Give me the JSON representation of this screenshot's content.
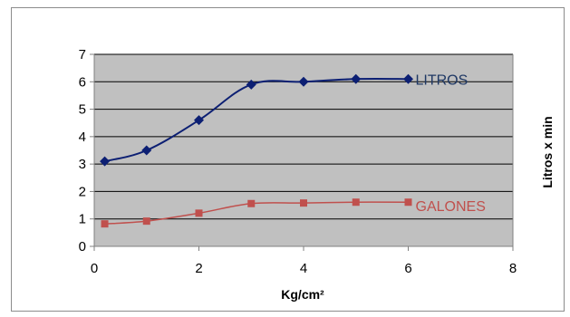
{
  "chart_data": {
    "type": "line",
    "xlabel": "Kg/cm²",
    "ylabel": "Litros x min",
    "xlim": [
      0,
      8
    ],
    "ylim": [
      0,
      7
    ],
    "x_ticks": [
      "0",
      "2",
      "4",
      "6",
      "8"
    ],
    "y_ticks": [
      "0",
      "1",
      "2",
      "3",
      "4",
      "5",
      "6",
      "7"
    ],
    "grid": "horizontal",
    "plot_background": "#c0c0c0",
    "series": [
      {
        "name": "LITROS",
        "color": "#0c1f73",
        "label_color": "#1f3864",
        "marker": "diamond",
        "smooth": true,
        "x": [
          0.2,
          1,
          2,
          3,
          4,
          5,
          6
        ],
        "values": [
          3.1,
          3.5,
          4.6,
          5.9,
          6.0,
          6.1,
          6.1
        ]
      },
      {
        "name": "GALONES",
        "color": "#c0504d",
        "label_color": "#c0504d",
        "marker": "square",
        "smooth": true,
        "x": [
          0.2,
          1,
          2,
          3,
          4,
          5,
          6
        ],
        "values": [
          0.82,
          0.92,
          1.21,
          1.56,
          1.58,
          1.61,
          1.61
        ]
      }
    ]
  }
}
